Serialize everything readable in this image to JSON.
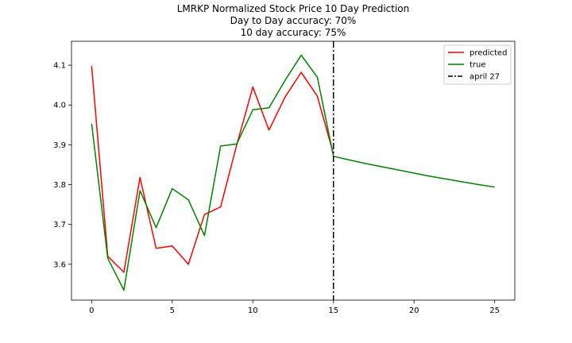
{
  "chart_data": {
    "type": "line",
    "title_lines": [
      "LMRKP Normalized Stock Price 10 Day Prediction",
      "Day to Day accuracy: 70%",
      "10 day accuracy: 75%"
    ],
    "xlabel": "",
    "ylabel": "",
    "xlim": [
      -1.25,
      26.25
    ],
    "ylim": [
      3.51,
      4.16
    ],
    "x_ticks": [
      0,
      5,
      10,
      15,
      20,
      25
    ],
    "y_ticks": [
      3.6,
      3.7,
      3.8,
      3.9,
      4.0,
      4.1
    ],
    "y_tick_labels": [
      "3.6",
      "3.7",
      "3.8",
      "3.9",
      "4.0",
      "4.1"
    ],
    "grid": false,
    "legend_position": "top-right",
    "series": [
      {
        "name": "predicted",
        "color": "#ff0000",
        "x": [
          0,
          1,
          2,
          3,
          4,
          5,
          6,
          7,
          8,
          9,
          10,
          11,
          12,
          13,
          14,
          15
        ],
        "y": [
          4.098,
          3.62,
          3.58,
          3.818,
          3.64,
          3.646,
          3.6,
          3.725,
          3.744,
          3.9,
          4.045,
          3.937,
          4.02,
          4.082,
          4.022,
          3.877
        ]
      },
      {
        "name": "true",
        "color": "#008000",
        "x": [
          0,
          1,
          2,
          3,
          4,
          5,
          6,
          7,
          8,
          9,
          10,
          11,
          12,
          13,
          14,
          15,
          16,
          17,
          18,
          19,
          20,
          21,
          22,
          23,
          24,
          25
        ],
        "y": [
          3.953,
          3.615,
          3.535,
          3.785,
          3.692,
          3.79,
          3.762,
          3.672,
          3.897,
          3.902,
          3.988,
          3.993,
          4.062,
          4.125,
          4.07,
          3.871,
          3.862,
          3.853,
          3.845,
          3.837,
          3.829,
          3.821,
          3.814,
          3.807,
          3.8,
          3.794
        ]
      }
    ],
    "vlines": [
      {
        "name": "april 27",
        "x": 15,
        "color": "#000000",
        "style": "dash-dot"
      }
    ]
  }
}
